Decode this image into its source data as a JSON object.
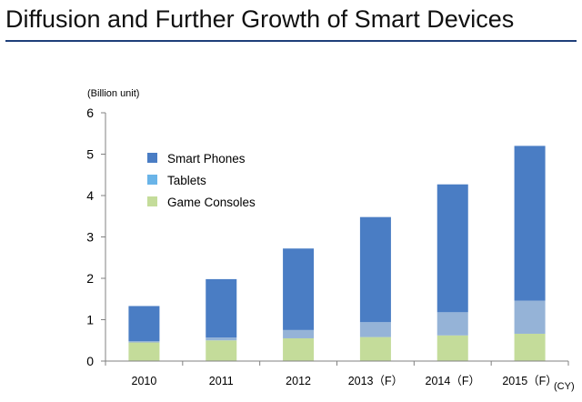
{
  "title": "Diffusion and Further Growth of Smart Devices",
  "chart_data": {
    "type": "bar",
    "stacked": true,
    "title": "Diffusion and Further Growth of Smart Devices",
    "ylabel": "(Billion unit)",
    "xlabel": "(CY)",
    "ylim": [
      0,
      6
    ],
    "yticks": [
      0,
      1,
      2,
      3,
      4,
      5,
      6
    ],
    "categories": [
      "2010",
      "2011",
      "2012",
      "2013（F）",
      "2014（F）",
      "2015（F）"
    ],
    "series": [
      {
        "name": "Game Consoles",
        "color": "#c4dc9a",
        "values": [
          0.45,
          0.5,
          0.55,
          0.58,
          0.62,
          0.66
        ]
      },
      {
        "name": "Tablets",
        "color": "#95b3d7",
        "values": [
          0.03,
          0.07,
          0.2,
          0.36,
          0.56,
          0.8
        ]
      },
      {
        "name": "Smart Phones",
        "color": "#4a7dc4",
        "values": [
          0.85,
          1.41,
          1.97,
          2.54,
          3.09,
          3.74
        ]
      }
    ],
    "legend": {
      "placement": "top-left",
      "items": [
        {
          "name": "Smart Phones",
          "color": "#4a7dc4"
        },
        {
          "name": "Tablets",
          "color": "#6ab4e8"
        },
        {
          "name": "Game Consoles",
          "color": "#c4dc9a"
        }
      ]
    },
    "grid": false
  }
}
